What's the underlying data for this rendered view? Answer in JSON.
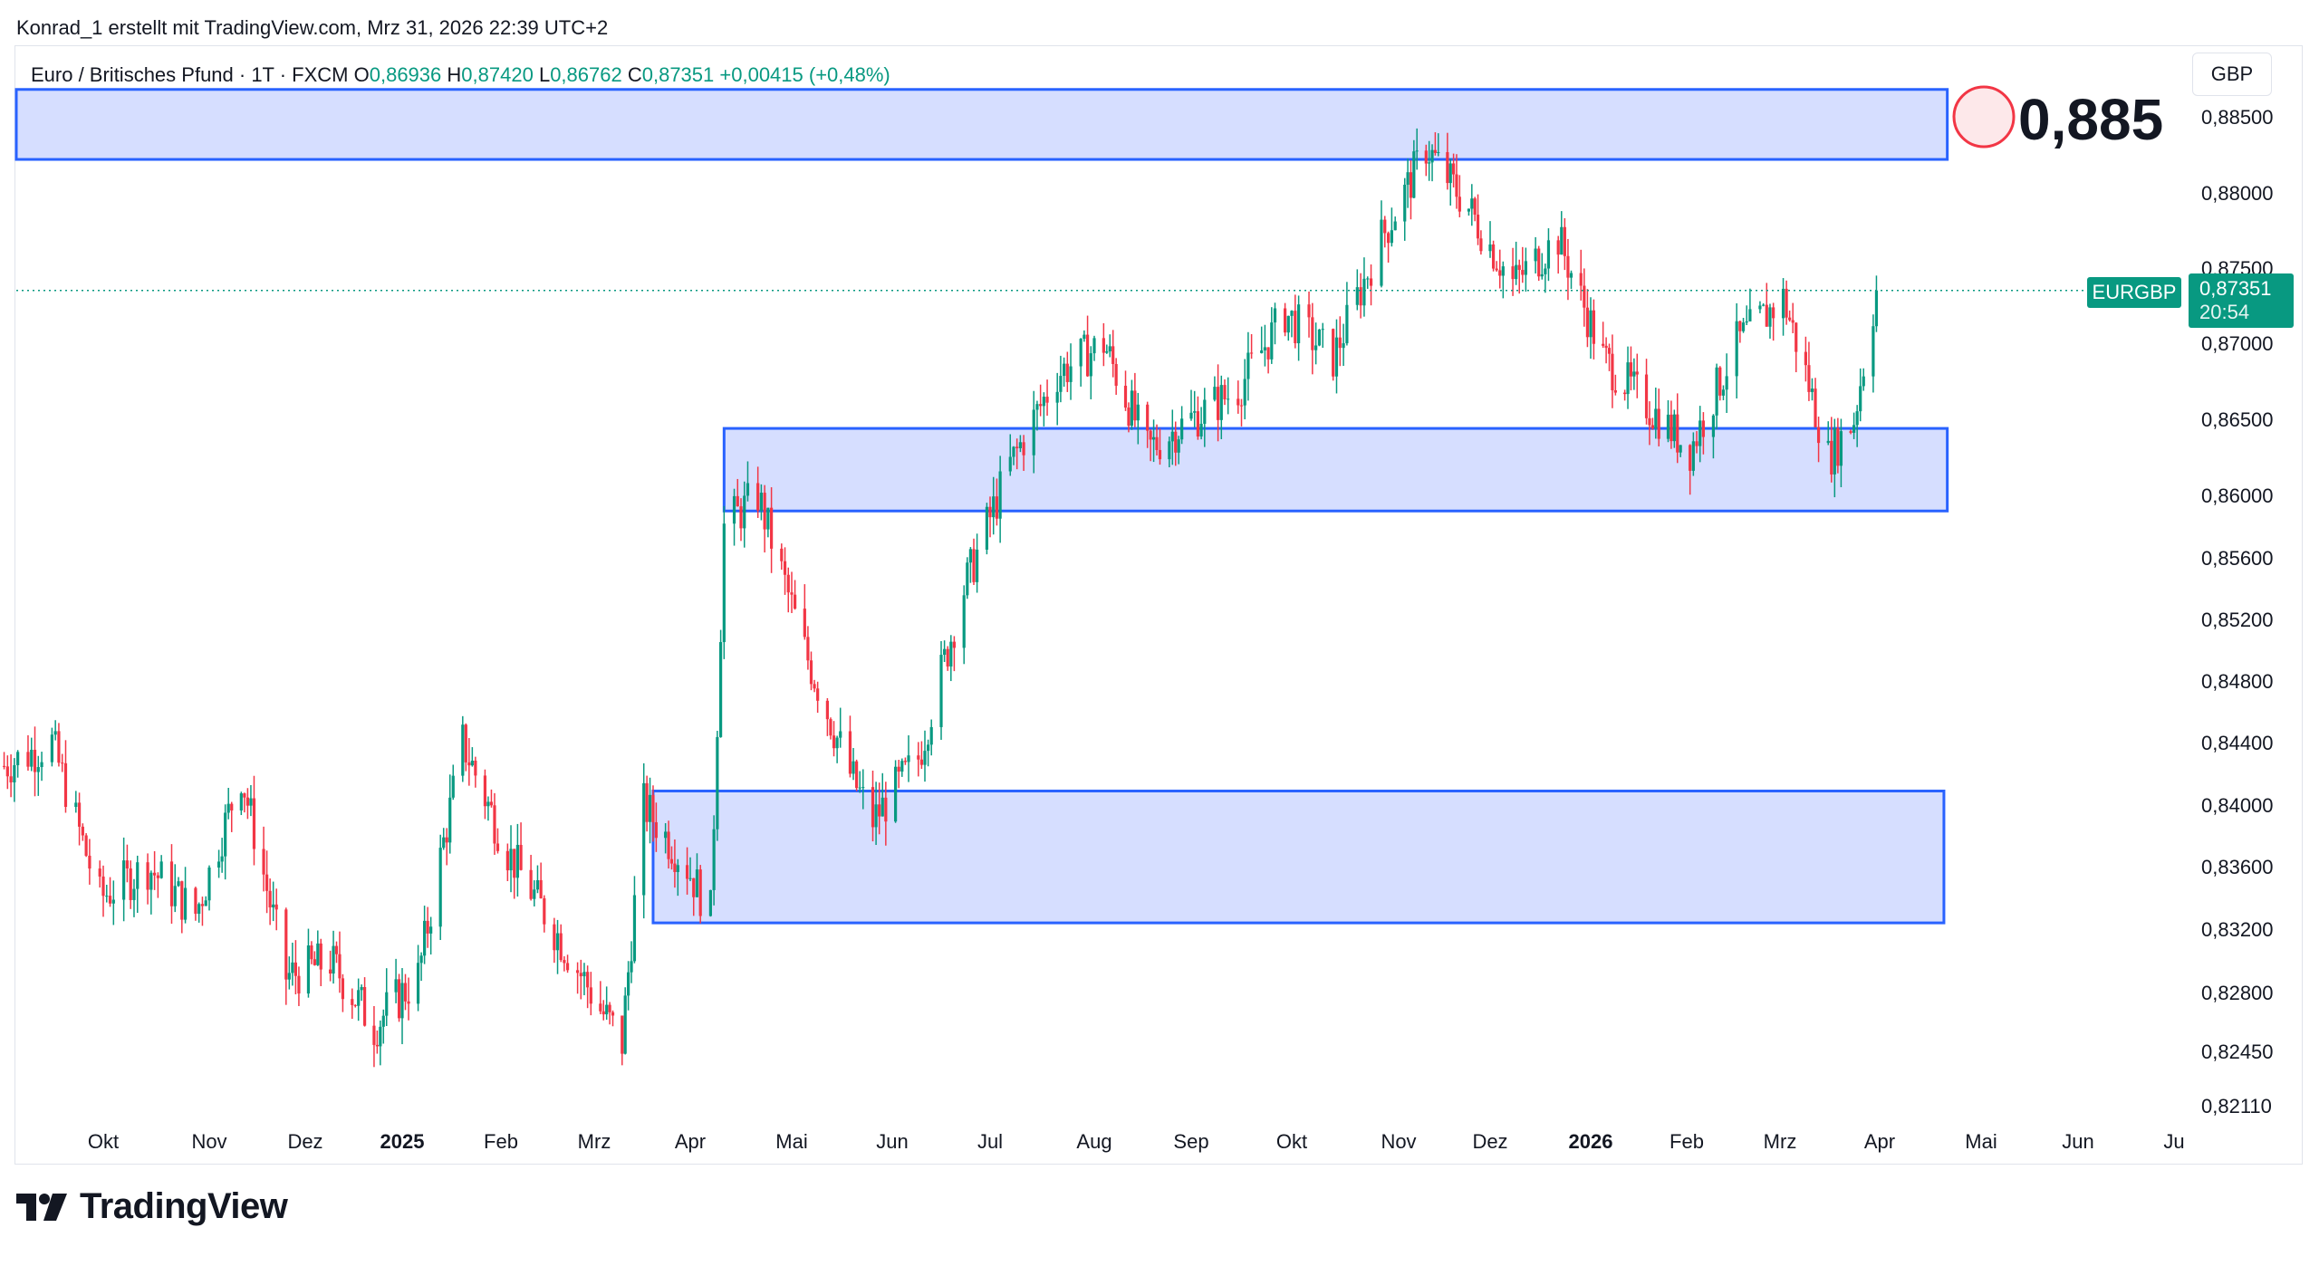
{
  "header": {
    "text": "Konrad_1 erstellt mit TradingView.com, Mrz 31, 2026 22:39 UTC+2"
  },
  "legend": {
    "title": "Euro / Britisches Pfund · 1T · FXCM",
    "open_label": "O",
    "open": "0,86936",
    "high_label": "H",
    "high": "0,87420",
    "low_label": "L",
    "low": "0,86762",
    "close_label": "C",
    "close": "0,87351",
    "change": "+0,00415 (+0,48%)"
  },
  "currency": "GBP",
  "price_tag": {
    "symbol": "EURGBP",
    "price": "0,87351",
    "countdown": "20:54"
  },
  "annotation": {
    "text": "0,885"
  },
  "logo": {
    "text": "TradingView"
  },
  "colors": {
    "up": "#089981",
    "down": "#f23645",
    "zone_fill": "#d4dcff",
    "zone_border": "#2962ff",
    "annotation_circle": "#f23645"
  },
  "chart_data": {
    "type": "candlestick",
    "symbol": "EURGBP",
    "timeframe": "1T",
    "y_ticks": [
      "0,88500",
      "0,88000",
      "0,87500",
      "0,87000",
      "0,86500",
      "0,86000",
      "0,85600",
      "0,85200",
      "0,84800",
      "0,84400",
      "0,84000",
      "0,83600",
      "0,83200",
      "0,82800",
      "0,82450",
      "0,82110"
    ],
    "y_tick_values": [
      0.885,
      0.88,
      0.875,
      0.87,
      0.865,
      0.86,
      0.856,
      0.852,
      0.848,
      0.844,
      0.84,
      0.836,
      0.832,
      0.828,
      0.8245,
      0.8211
    ],
    "x_ticks": [
      {
        "label": "Okt",
        "date": "2024-10-01",
        "bold": false
      },
      {
        "label": "Nov",
        "date": "2024-11-01",
        "bold": false
      },
      {
        "label": "Dez",
        "date": "2024-12-01",
        "bold": false
      },
      {
        "label": "2025",
        "date": "2025-01-01",
        "bold": true
      },
      {
        "label": "Feb",
        "date": "2025-02-01",
        "bold": false
      },
      {
        "label": "Mrz",
        "date": "2025-03-01",
        "bold": false
      },
      {
        "label": "Apr",
        "date": "2025-04-01",
        "bold": false
      },
      {
        "label": "Mai",
        "date": "2025-05-01",
        "bold": false
      },
      {
        "label": "Jun",
        "date": "2025-06-01",
        "bold": false
      },
      {
        "label": "Jul",
        "date": "2025-07-01",
        "bold": false
      },
      {
        "label": "Aug",
        "date": "2025-08-01",
        "bold": false
      },
      {
        "label": "Sep",
        "date": "2025-09-01",
        "bold": false
      },
      {
        "label": "Okt",
        "date": "2025-10-01",
        "bold": false
      },
      {
        "label": "Nov",
        "date": "2025-11-01",
        "bold": false
      },
      {
        "label": "Dez",
        "date": "2025-12-01",
        "bold": false
      },
      {
        "label": "2026",
        "date": "2026-01-01",
        "bold": true
      },
      {
        "label": "Feb",
        "date": "2026-02-01",
        "bold": false
      },
      {
        "label": "Mrz",
        "date": "2026-03-01",
        "bold": false
      },
      {
        "label": "Apr",
        "date": "2026-04-01",
        "bold": false
      },
      {
        "label": "Mai",
        "date": "2026-05-01",
        "bold": false
      },
      {
        "label": "Jun",
        "date": "2026-06-01",
        "bold": false
      },
      {
        "label": "Ju",
        "date": "2026-07-01",
        "bold": false
      }
    ],
    "last_price": 0.87351,
    "zones": [
      {
        "name": "resistance-zone",
        "start": "2024-09-01",
        "end": "2026-04-21",
        "top": 0.8868,
        "bottom": 0.8822
      },
      {
        "name": "middle-zone",
        "start": "2025-04-11",
        "end": "2026-04-21",
        "top": 0.8644,
        "bottom": 0.859
      },
      {
        "name": "support-zone",
        "start": "2025-03-20",
        "end": "2026-04-20",
        "top": 0.8409,
        "bottom": 0.8324
      }
    ],
    "series": [
      {
        "date": "2024-09-02",
        "close": 0.8425
      },
      {
        "date": "2024-09-16",
        "close": 0.844
      },
      {
        "date": "2024-09-30",
        "close": 0.834
      },
      {
        "date": "2024-10-14",
        "close": 0.836
      },
      {
        "date": "2024-10-28",
        "close": 0.833
      },
      {
        "date": "2024-11-11",
        "close": 0.842
      },
      {
        "date": "2024-11-25",
        "close": 0.829
      },
      {
        "date": "2024-12-09",
        "close": 0.83
      },
      {
        "date": "2024-12-23",
        "close": 0.826
      },
      {
        "date": "2025-01-06",
        "close": 0.829
      },
      {
        "date": "2025-01-20",
        "close": 0.844
      },
      {
        "date": "2025-02-03",
        "close": 0.837
      },
      {
        "date": "2025-02-17",
        "close": 0.832
      },
      {
        "date": "2025-03-03",
        "close": 0.827
      },
      {
        "date": "2025-03-10",
        "close": 0.825
      },
      {
        "date": "2025-03-17",
        "close": 0.84
      },
      {
        "date": "2025-03-31",
        "close": 0.836
      },
      {
        "date": "2025-04-07",
        "close": 0.833
      },
      {
        "date": "2025-04-11",
        "close": 0.858
      },
      {
        "date": "2025-04-21",
        "close": 0.86
      },
      {
        "date": "2025-05-05",
        "close": 0.85
      },
      {
        "date": "2025-05-19",
        "close": 0.842
      },
      {
        "date": "2025-05-26",
        "close": 0.839
      },
      {
        "date": "2025-06-09",
        "close": 0.843
      },
      {
        "date": "2025-06-23",
        "close": 0.854
      },
      {
        "date": "2025-07-07",
        "close": 0.862
      },
      {
        "date": "2025-07-21",
        "close": 0.868
      },
      {
        "date": "2025-08-04",
        "close": 0.87
      },
      {
        "date": "2025-08-18",
        "close": 0.863
      },
      {
        "date": "2025-09-01",
        "close": 0.865
      },
      {
        "date": "2025-09-15",
        "close": 0.867
      },
      {
        "date": "2025-09-29",
        "close": 0.872
      },
      {
        "date": "2025-10-13",
        "close": 0.869
      },
      {
        "date": "2025-10-27",
        "close": 0.877
      },
      {
        "date": "2025-11-10",
        "close": 0.883
      },
      {
        "date": "2025-11-24",
        "close": 0.879
      },
      {
        "date": "2025-12-08",
        "close": 0.874
      },
      {
        "date": "2025-12-22",
        "close": 0.877
      },
      {
        "date": "2026-01-05",
        "close": 0.869
      },
      {
        "date": "2026-01-19",
        "close": 0.866
      },
      {
        "date": "2026-02-02",
        "close": 0.863
      },
      {
        "date": "2026-02-16",
        "close": 0.87
      },
      {
        "date": "2026-03-02",
        "close": 0.873
      },
      {
        "date": "2026-03-09",
        "close": 0.868
      },
      {
        "date": "2026-03-16",
        "close": 0.8625
      },
      {
        "date": "2026-03-24",
        "close": 0.865
      },
      {
        "date": "2026-03-31",
        "close": 0.8735
      }
    ]
  }
}
